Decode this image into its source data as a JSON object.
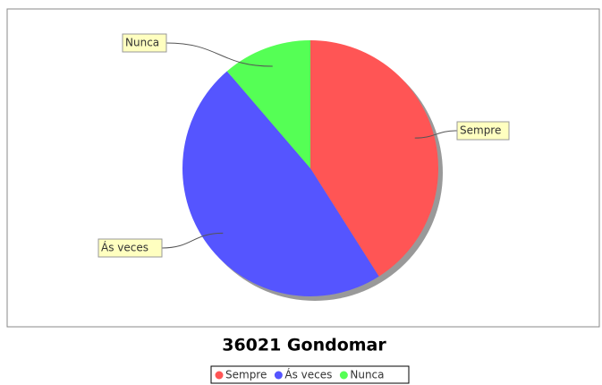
{
  "chart_data": {
    "type": "pie",
    "title": "36021 Gondomar",
    "categories": [
      "Sempre",
      "Ás veces",
      "Nunca"
    ],
    "values": [
      41,
      47.7,
      11.3
    ],
    "colors": [
      "#ff5555",
      "#5555ff",
      "#55ff55"
    ],
    "legend": "bottom"
  }
}
